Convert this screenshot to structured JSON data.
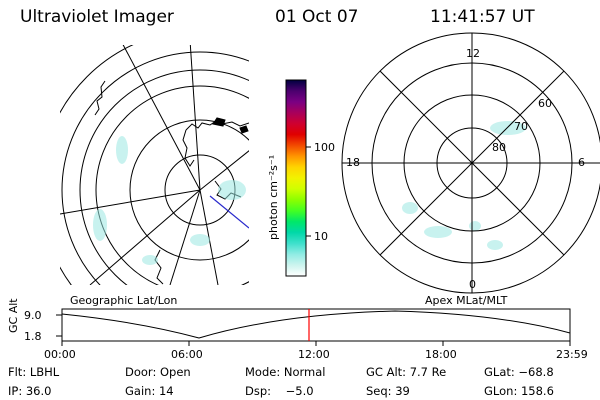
{
  "header": {
    "instrument": "Ultraviolet Imager",
    "date": "01 Oct 07",
    "time": "11:41:57 UT"
  },
  "geographic_panel": {
    "label": "Geographic Lat/Lon"
  },
  "magnetic_panel": {
    "label": "Apex MLat/MLT",
    "mlt_labels": {
      "top": "12",
      "right": "6",
      "bottom": "0",
      "left": "18"
    },
    "lat_labels": [
      "60",
      "70",
      "80"
    ]
  },
  "colorbar": {
    "unit_label": "photon cm⁻²s⁻¹",
    "tick_labels": [
      "100",
      "10"
    ],
    "colors": [
      "#000040",
      "#4b006e",
      "#7a0083",
      "#a8005b",
      "#cf0030",
      "#e00000",
      "#f24a00",
      "#ff9500",
      "#ffd400",
      "#f2f200",
      "#cfff00",
      "#8cff00",
      "#44ff22",
      "#00e868",
      "#00d8a8",
      "#3ee0cc",
      "#90ece4",
      "#ccf4ee",
      "#ffffff"
    ]
  },
  "timeline": {
    "axis_label": "GC Alt",
    "y_labels": [
      "9.0",
      "1.8"
    ],
    "x_labels": [
      "00:00",
      "06:00",
      "12:00",
      "18:00",
      "23:59"
    ],
    "current_time_marker_color": "#ff0000"
  },
  "info": {
    "row1": {
      "flt": "Flt: LBHL",
      "door": "Door: Open",
      "mode": "Mode: Normal",
      "gc_alt": "GC Alt: 7.7 Re",
      "glat": "GLat: −68.8"
    },
    "row2": {
      "ip": "IP: 36.0",
      "gain": "Gain: 14",
      "dsp": "Dsp:    −5.0",
      "seq": "Seq: 39",
      "glon": "GLon: 158.6"
    }
  }
}
